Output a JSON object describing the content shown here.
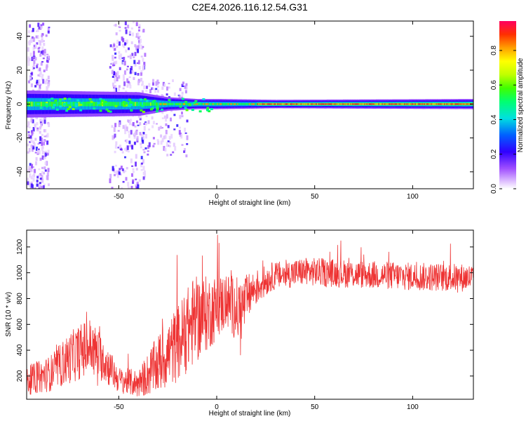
{
  "title": "C2E4.2026.116.12.54.G31",
  "chart_data": [
    {
      "type": "heatmap",
      "name": "spectrogram",
      "xlabel": "Height of straight line (km)",
      "ylabel": "Frequency (Hz)",
      "xlim": [
        -97,
        131
      ],
      "ylim": [
        -50,
        49
      ],
      "xticks": [
        -50,
        0,
        50,
        100
      ],
      "yticks": [
        -40,
        -20,
        0,
        20,
        40
      ],
      "band": [
        {
          "x": -97,
          "halfwidth": 8
        },
        {
          "x": -40,
          "halfwidth": 7
        },
        {
          "x": -25,
          "halfwidth": 4
        },
        {
          "x": -10,
          "halfwidth": 3
        },
        {
          "x": 0,
          "halfwidth": 3
        },
        {
          "x": 30,
          "halfwidth": 2.5
        },
        {
          "x": 131,
          "halfwidth": 3
        }
      ],
      "scatter_zones": [
        {
          "x_from": -97,
          "x_to": -86,
          "f_from": -50,
          "f_to": 49
        },
        {
          "x_from": -55,
          "x_to": -37,
          "f_from": -50,
          "f_to": 49
        },
        {
          "x_from": -37,
          "x_to": -15,
          "f_from": -30,
          "f_to": 15
        }
      ],
      "colorbar": {
        "label": "Normalized spectral amplitude",
        "ticks": [
          0.0,
          0.2,
          0.4,
          0.6,
          0.8
        ],
        "tick_labels": [
          "0.0",
          "0.2",
          "0.4",
          "0.6",
          "0.8"
        ],
        "range": [
          0,
          0.97
        ]
      }
    },
    {
      "type": "line",
      "name": "snr",
      "xlabel": "Height of straight line (km)",
      "ylabel": "SNR (10 * v/v)",
      "xlim": [
        -97,
        131
      ],
      "ylim": [
        20,
        1330
      ],
      "xticks": [
        -50,
        0,
        50,
        100
      ],
      "yticks": [
        200,
        400,
        600,
        800,
        1000,
        1200
      ],
      "color": "#ee3333",
      "trend": [
        {
          "x": -97,
          "y": 160,
          "noise": 110
        },
        {
          "x": -85,
          "y": 220,
          "noise": 140
        },
        {
          "x": -75,
          "y": 340,
          "noise": 200
        },
        {
          "x": -65,
          "y": 430,
          "noise": 230
        },
        {
          "x": -58,
          "y": 330,
          "noise": 180
        },
        {
          "x": -50,
          "y": 170,
          "noise": 100
        },
        {
          "x": -40,
          "y": 140,
          "noise": 110
        },
        {
          "x": -30,
          "y": 290,
          "noise": 230
        },
        {
          "x": -20,
          "y": 450,
          "noise": 300
        },
        {
          "x": -12,
          "y": 620,
          "noise": 350
        },
        {
          "x": -3,
          "y": 700,
          "noise": 280
        },
        {
          "x": 5,
          "y": 780,
          "noise": 220
        },
        {
          "x": 12,
          "y": 700,
          "noise": 260
        },
        {
          "x": 18,
          "y": 860,
          "noise": 150
        },
        {
          "x": 28,
          "y": 970,
          "noise": 110
        },
        {
          "x": 45,
          "y": 1010,
          "noise": 110
        },
        {
          "x": 70,
          "y": 990,
          "noise": 110
        },
        {
          "x": 100,
          "y": 970,
          "noise": 110
        },
        {
          "x": 131,
          "y": 960,
          "noise": 110
        }
      ]
    }
  ]
}
